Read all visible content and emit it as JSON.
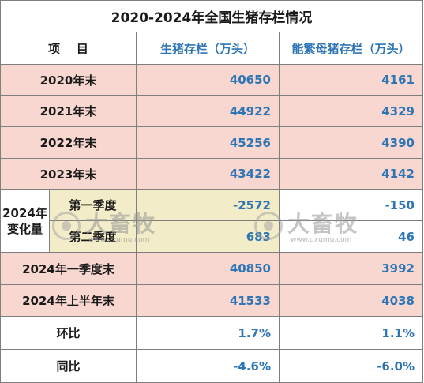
{
  "title": "2020-2024年全国生猪存栏情况",
  "header": {
    "item": "项    目",
    "col1": "生猪存栏（万头）",
    "col2": "能繁母猪存栏（万头）"
  },
  "rows": [
    {
      "label": "2020年末",
      "v1": "40650",
      "v2": "4161"
    },
    {
      "label": "2021年末",
      "v1": "44922",
      "v2": "4329"
    },
    {
      "label": "2022年末",
      "v1": "45256",
      "v2": "4390"
    },
    {
      "label": "2023年末",
      "v1": "43422",
      "v2": "4142"
    }
  ],
  "change": {
    "label_line1": "2024年",
    "label_line2": "变化量",
    "q1": {
      "label": "第一季度",
      "v1": "-2572",
      "v2": "-150"
    },
    "q2": {
      "label": "第二季度",
      "v1": "683",
      "v2": "46"
    }
  },
  "rows2": [
    {
      "label": "2024年一季度末",
      "v1": "40850",
      "v2": "3992"
    },
    {
      "label": "2024年上半年末",
      "v1": "41533",
      "v2": "4038"
    }
  ],
  "ratios": [
    {
      "label": "环比",
      "v1": "1.7%",
      "v2": "1.1%"
    },
    {
      "label": "同比",
      "v1": "-4.6%",
      "v2": "-6.0%"
    }
  ],
  "watermark": {
    "brand": "大畜牧",
    "url": "www.dxumu.com"
  },
  "colors": {
    "accent_blue": "#2e75b6",
    "row_pink": "#f8d7d0",
    "border": "#7f7f7f"
  }
}
